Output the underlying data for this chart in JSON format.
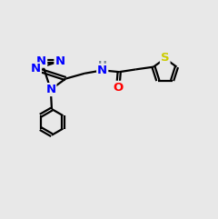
{
  "bg_color": "#e8e8e8",
  "N_color": "#0000ff",
  "O_color": "#ff0000",
  "S_color": "#cccc00",
  "C_color": "#000000",
  "H_color": "#708090",
  "font_size": 9.5,
  "line_width": 1.6,
  "double_sep": 0.07
}
